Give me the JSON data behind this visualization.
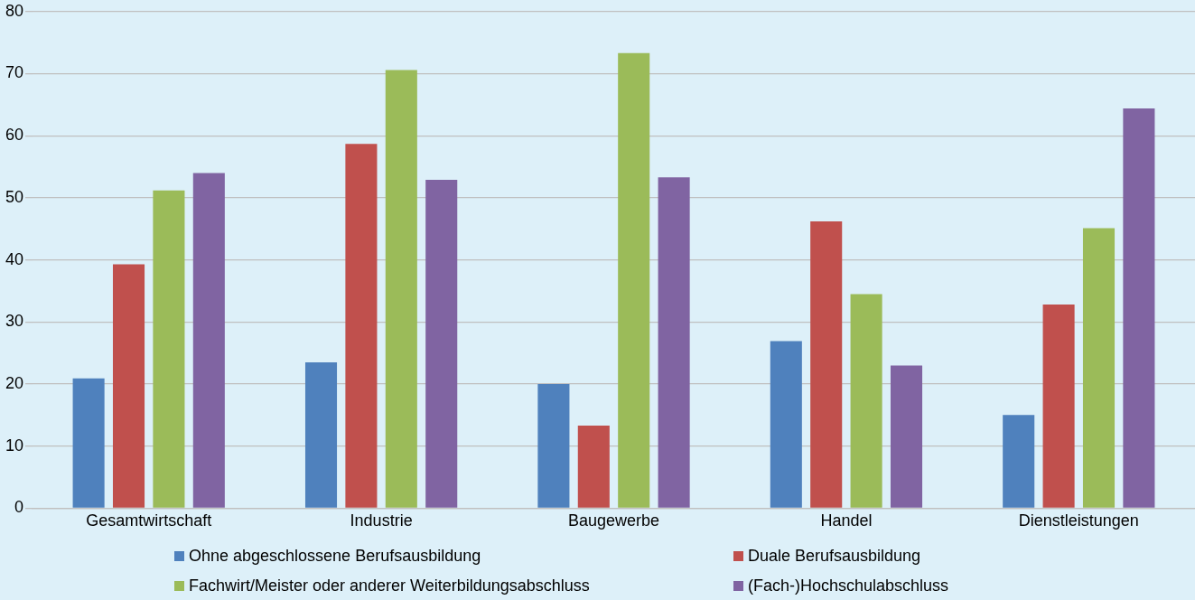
{
  "chart_data": {
    "type": "bar",
    "categories": [
      "Gesamtwirtschaft",
      "Industrie",
      "Baugewerbe",
      "Handel",
      "Dienstleistungen"
    ],
    "series": [
      {
        "name": "Ohne abgeschlossene Berufsausbildung",
        "color": "#4f81bd",
        "values": [
          20.9,
          23.5,
          20.0,
          26.9,
          15.0
        ]
      },
      {
        "name": "Duale Berufsausbildung",
        "color": "#c0504d",
        "values": [
          39.3,
          58.7,
          13.3,
          46.2,
          32.8
        ]
      },
      {
        "name": "Fachwirt/Meister oder anderer Weiterbildungsabschluss",
        "color": "#9bbb59",
        "values": [
          51.2,
          70.6,
          73.3,
          34.5,
          45.1
        ]
      },
      {
        "name": "(Fach-)Hochschulabschluss",
        "color": "#8064a2",
        "values": [
          54.0,
          52.9,
          53.3,
          23.0,
          64.4
        ]
      }
    ],
    "ylim": [
      0,
      80
    ],
    "yticks": [
      0,
      10,
      20,
      30,
      40,
      50,
      60,
      70,
      80
    ],
    "grid": "y",
    "legend": "bottom"
  }
}
